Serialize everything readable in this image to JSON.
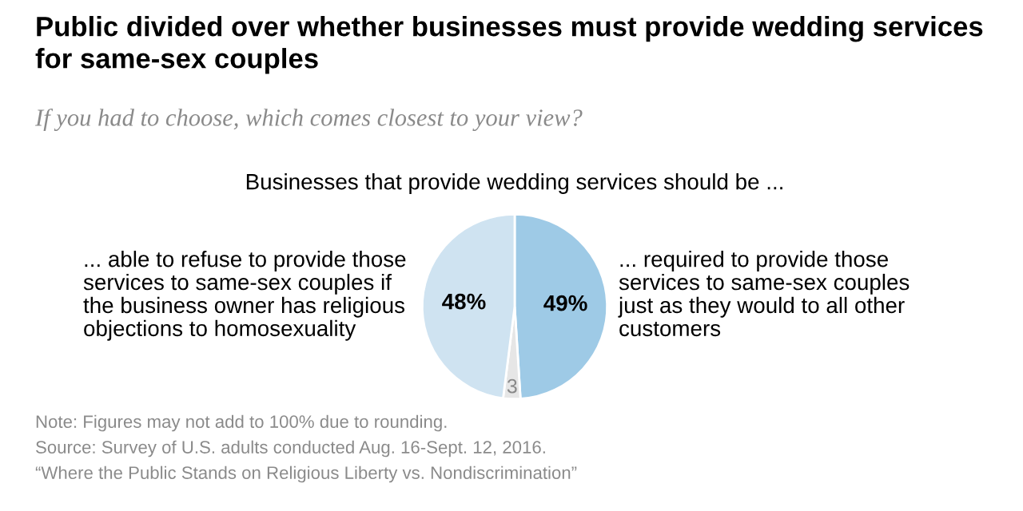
{
  "chart_data": {
    "type": "pie",
    "title": "Public divided over whether businesses must provide wedding services\nfor same-sex couples",
    "subtitle": "If you had to choose, which comes closest to your view?",
    "categories": [
      "... required to provide those\nservices to same-sex couples\njust as they would to all other\ncustomers",
      null,
      "... able to refuse to provide those\nservices to same-sex couples if\nthe business owner has religious\nobjections to homosexuality"
    ],
    "values": [
      49,
      3,
      48
    ],
    "value_labels": [
      "49%",
      "3",
      "48%"
    ],
    "colors": [
      "#9ecae6",
      "#e6e6e6",
      "#cfe3f1"
    ],
    "annotations": [
      "Businesses that provide wedding services should be ...",
      "Note: Figures may not add to 100% due to rounding.",
      "Source: Survey of U.S. adults conducted Aug. 16-Sept. 12, 2016.",
      "“Where the Public Stands on Religious Liberty vs. Nondiscrimination”"
    ],
    "legend": false
  }
}
